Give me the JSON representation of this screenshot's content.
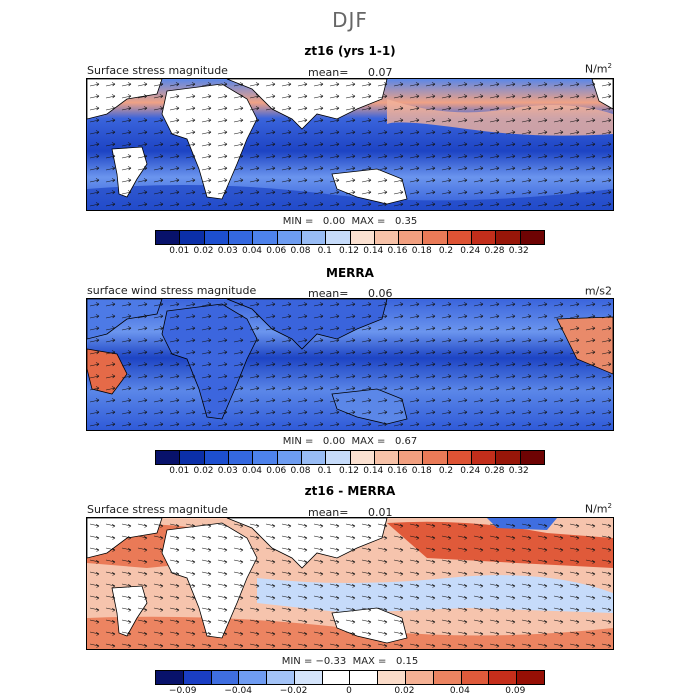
{
  "main_title": "DJF",
  "panels": [
    {
      "title": "zt16 (yrs 1-1)",
      "variable": "Surface stress magnitude",
      "mean_label": "mean=",
      "mean_value": "0.07",
      "units": "N/m",
      "units_sup": "2",
      "min_label": "MIN =",
      "min_value": "0.00",
      "max_label": "MAX =",
      "max_value": "0.35",
      "colorbar_ticks": [
        "0.01",
        "0.02",
        "0.03",
        "0.04",
        "0.06",
        "0.08",
        "0.1",
        "0.12",
        "0.14",
        "0.16",
        "0.18",
        "0.2",
        "0.24",
        "0.28",
        "0.32"
      ]
    },
    {
      "title": "MERRA",
      "variable": "surface wind stress magnitude",
      "mean_label": "mean=",
      "mean_value": "0.06",
      "units": "m/s2",
      "units_sup": "",
      "min_label": "MIN =",
      "min_value": "0.00",
      "max_label": "MAX =",
      "max_value": "0.67",
      "colorbar_ticks": [
        "0.01",
        "0.02",
        "0.03",
        "0.04",
        "0.06",
        "0.08",
        "0.1",
        "0.12",
        "0.14",
        "0.16",
        "0.18",
        "0.2",
        "0.24",
        "0.28",
        "0.32"
      ]
    },
    {
      "title": "zt16 - MERRA",
      "variable": "Surface stress magnitude",
      "mean_label": "mean=",
      "mean_value": "0.01",
      "units": "N/m",
      "units_sup": "2",
      "min_label": "MIN =",
      "min_value": "−0.33",
      "max_label": "MAX =",
      "max_value": "0.15",
      "colorbar_ticks": [
        "−0.09",
        "−0.04",
        "−0.02",
        "0",
        "0.02",
        "0.04",
        "0.09"
      ]
    }
  ],
  "colors": {
    "seq": [
      "#08126b",
      "#0b2fa8",
      "#1d4fd0",
      "#3468e0",
      "#4d82ec",
      "#6d9cf1",
      "#98bcf5",
      "#c6dbfa",
      "#fbe1d1",
      "#f7c2a8",
      "#f29f7f",
      "#ea7a57",
      "#de5334",
      "#c32e1b",
      "#981609",
      "#6e0303"
    ],
    "div": [
      "#08126b",
      "#1a3ec4",
      "#3f6ee0",
      "#6f9cf2",
      "#a3c3f7",
      "#d4e4fb",
      "#ffffff",
      "#ffffff",
      "#fbdcc9",
      "#f5b194",
      "#ec8461",
      "#df5a3b",
      "#c52e1b",
      "#960f05"
    ],
    "land": "#ffffff",
    "ocean_low": "#3a64dc",
    "ocean_mid": "#6b95ee",
    "ocean_high": "#f0a285"
  }
}
